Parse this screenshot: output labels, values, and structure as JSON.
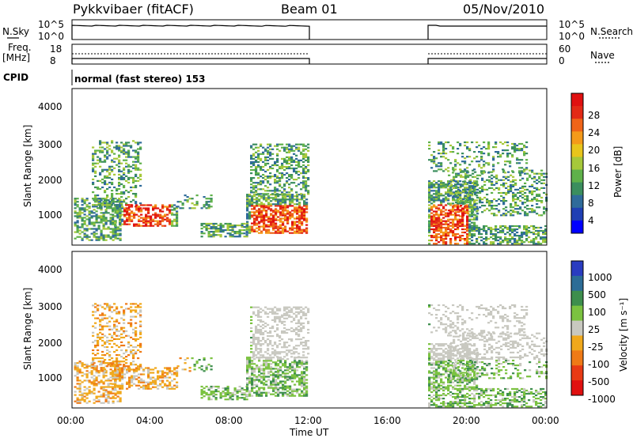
{
  "header": {
    "station": "Pykkvibaer (fitACF)",
    "beam": "Beam 01",
    "date": "05/Nov/2010"
  },
  "top_panels": {
    "nsky_label": "N.Sky",
    "nsky_ticks": [
      "10^5",
      "10^0"
    ],
    "nsearch_ticks": [
      "10^5",
      "10^0"
    ],
    "nsearch_label": "N.Search",
    "freq_label": "Freq.",
    "freq_unit": "[MHz]",
    "freq_ticks": [
      "18",
      "8"
    ],
    "nave_ticks": [
      "60",
      "0"
    ],
    "nave_label": "Nave",
    "cpid_label": "CPID",
    "cpid_value": "normal (fast stereo) 153"
  },
  "chart_data": [
    {
      "type": "heatmap",
      "name": "power",
      "ylabel": "Slant Range [km]",
      "ylim": [
        180,
        4590
      ],
      "y_ticks": [
        "4000",
        "3000",
        "2000",
        "1000"
      ],
      "colorbar_label": "Power [dB]",
      "colorbar_ticks": [
        "28",
        "24",
        "20",
        "16",
        "12",
        "8",
        "4"
      ],
      "colorbar_colors": [
        "#0000ff",
        "#1f3fb4",
        "#2f6b9a",
        "#3b8e5e",
        "#5fb14a",
        "#a6c83a",
        "#e8c51c",
        "#f49a1a",
        "#ef6418",
        "#e32a16",
        "#e01010"
      ],
      "data_intervals_ut": [
        [
          "00:00",
          "12:00"
        ],
        [
          "18:00",
          "24:00"
        ]
      ]
    },
    {
      "type": "heatmap",
      "name": "velocity",
      "ylabel": "Slant Range [km]",
      "ylim": [
        180,
        4590
      ],
      "y_ticks": [
        "4000",
        "3000",
        "2000",
        "1000"
      ],
      "colorbar_label": "Velocity [m s⁻¹]",
      "colorbar_ticks": [
        "1000",
        "500",
        "100",
        "25",
        "-25",
        "-100",
        "-500",
        "-1000"
      ],
      "colorbar_colors": [
        "#2a3cc0",
        "#2c6c96",
        "#3d8e4d",
        "#7bc240",
        "#c8c8c0",
        "#f0a81c",
        "#ef7a16",
        "#e83a14",
        "#e01010"
      ],
      "data_intervals_ut": [
        [
          "00:00",
          "12:00"
        ],
        [
          "18:00",
          "24:00"
        ]
      ]
    }
  ],
  "x_axis": {
    "label": "Time UT",
    "ticks": [
      "00:00",
      "04:00",
      "08:00",
      "12:00",
      "16:00",
      "20:00",
      "00:00"
    ]
  },
  "colors": {
    "power_scale": [
      "#0000ff",
      "#2f6b9a",
      "#5fb14a",
      "#e8c51c",
      "#ef6418",
      "#e01010"
    ],
    "velocity_scale": [
      "#2a3cc0",
      "#3d8e4d",
      "#c8c8c0",
      "#ef7a16",
      "#e01010"
    ]
  }
}
